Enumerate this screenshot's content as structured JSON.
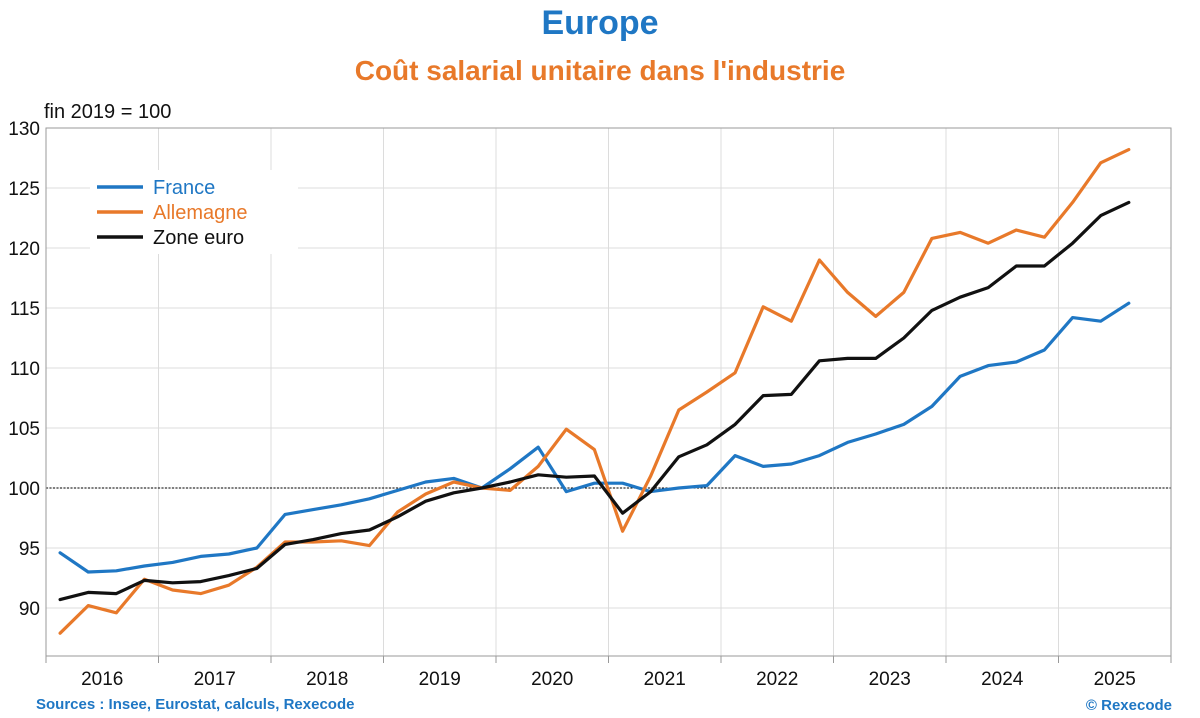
{
  "header": {
    "title": "Europe",
    "subtitle": "Coût salarial unitaire dans l'industrie",
    "unit_note": "fin 2019 = 100"
  },
  "footer": {
    "source": "Sources : Insee, Eurostat, calculs, Rexecode",
    "copyright": "© Rexecode"
  },
  "chart_data": {
    "type": "line",
    "title": "Coût salarial unitaire dans l'industrie",
    "ylabel": "fin 2019 = 100",
    "ylim": [
      86,
      130
    ],
    "yticks": [
      90,
      95,
      100,
      105,
      110,
      115,
      120,
      125,
      130
    ],
    "year_labels": [
      "2016",
      "2017",
      "2018",
      "2019",
      "2020",
      "2021",
      "2022",
      "2023",
      "2024",
      "2025"
    ],
    "x": [
      "2016T1",
      "2016T2",
      "2016T3",
      "2016T4",
      "2017T1",
      "2017T2",
      "2017T3",
      "2017T4",
      "2018T1",
      "2018T2",
      "2018T3",
      "2018T4",
      "2019T1",
      "2019T2",
      "2019T3",
      "2019T4",
      "2020T1",
      "2020T2",
      "2020T3",
      "2020T4",
      "2021T1",
      "2021T2",
      "2021T3",
      "2021T4",
      "2022T1",
      "2022T2",
      "2022T3",
      "2022T4",
      "2023T1",
      "2023T2",
      "2023T3",
      "2023T4",
      "2024T1",
      "2024T2",
      "2024T3",
      "2024T4",
      "2025T1",
      "2025T2",
      "2025T3"
    ],
    "reference_line": 100,
    "grid": true,
    "legend_position": "top-left",
    "series": [
      {
        "name": "France",
        "color": "#1f77c4",
        "values": [
          94.6,
          93.0,
          93.1,
          93.5,
          93.8,
          94.3,
          94.5,
          95.0,
          97.8,
          98.2,
          98.6,
          99.1,
          99.8,
          100.5,
          100.8,
          100.0,
          101.6,
          103.4,
          99.7,
          100.4,
          100.4,
          99.7,
          100.0,
          100.2,
          102.7,
          101.8,
          102.0,
          102.7,
          103.8,
          104.5,
          105.3,
          106.8,
          109.3,
          110.2,
          110.5,
          111.5,
          114.2,
          113.9,
          115.4
        ]
      },
      {
        "name": "Allemagne",
        "color": "#e8792a",
        "values": [
          87.9,
          90.2,
          89.6,
          92.4,
          91.5,
          91.2,
          91.9,
          93.4,
          95.5,
          95.5,
          95.6,
          95.2,
          98.0,
          99.5,
          100.5,
          100.0,
          99.8,
          101.8,
          104.9,
          103.2,
          96.4,
          101.0,
          106.5,
          108.0,
          109.6,
          115.1,
          113.9,
          119.0,
          116.3,
          114.3,
          116.3,
          120.8,
          121.3,
          120.4,
          121.5,
          120.9,
          123.8,
          127.1,
          128.2
        ]
      },
      {
        "name": "Zone euro",
        "color": "#111111",
        "values": [
          90.7,
          91.3,
          91.2,
          92.3,
          92.1,
          92.2,
          92.7,
          93.3,
          95.3,
          95.7,
          96.2,
          96.5,
          97.6,
          98.9,
          99.6,
          100.0,
          100.5,
          101.1,
          100.9,
          101.0,
          97.9,
          99.7,
          102.6,
          103.6,
          105.3,
          107.7,
          107.8,
          110.6,
          110.8,
          110.8,
          112.5,
          114.8,
          115.9,
          116.7,
          118.5,
          118.5,
          120.4,
          122.7,
          123.8
        ]
      }
    ]
  }
}
